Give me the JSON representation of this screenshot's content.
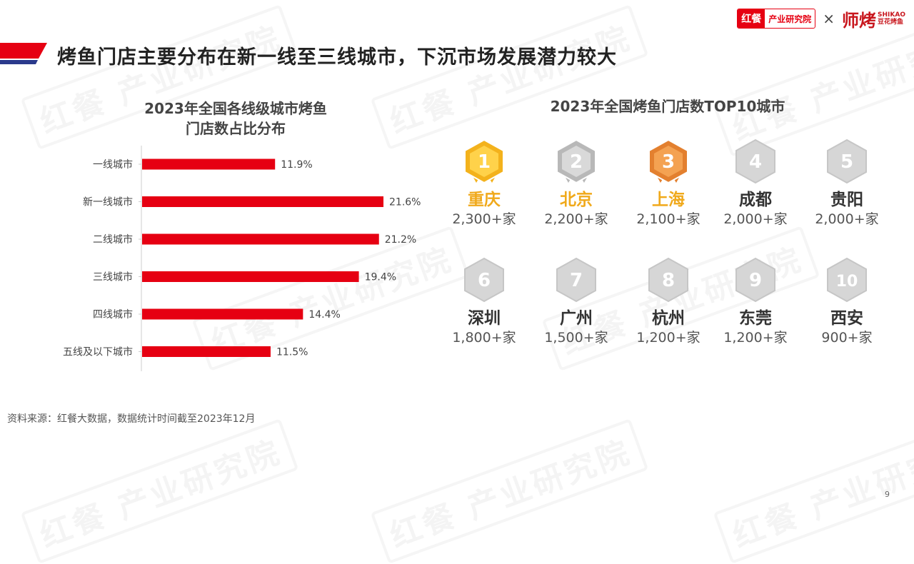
{
  "header": {
    "logo_hc_mark": "红餐",
    "logo_hc_text": "产业研究院",
    "logo_x": "×",
    "logo_sk_mark": "师烤",
    "logo_sk_en": "SHIKAO",
    "logo_sk_cn": "豆花烤鱼"
  },
  "watermark_text": "红餐 产业研究院",
  "page_title": "烤鱼门店主要分布在新一线至三线城市，下沉市场发展潜力较大",
  "chart_data": {
    "type": "bar",
    "orientation": "horizontal",
    "title_line1": "2023年全国各线级城市烤鱼",
    "title_line2": "门店数占比分布",
    "categories": [
      "一线城市",
      "新一线城市",
      "二线城市",
      "三线城市",
      "四线城市",
      "五线及以下城市"
    ],
    "values": [
      11.9,
      21.6,
      21.2,
      19.4,
      14.4,
      11.5
    ],
    "value_labels": [
      "11.9%",
      "21.6%",
      "21.2%",
      "19.4%",
      "14.4%",
      "11.5%"
    ],
    "unit": "%",
    "xlim": [
      0,
      21.6
    ],
    "grid": false,
    "bar_color": "#e60012"
  },
  "top10": {
    "title": "2023年全国烤鱼门店数TOP10城市",
    "cities": [
      {
        "rank": "1",
        "name": "重庆",
        "count": "2,300+家",
        "tier": "gold"
      },
      {
        "rank": "2",
        "name": "北京",
        "count": "2,200+家",
        "tier": "silver"
      },
      {
        "rank": "3",
        "name": "上海",
        "count": "2,100+家",
        "tier": "bronze"
      },
      {
        "rank": "4",
        "name": "成都",
        "count": "2,000+家",
        "tier": "plain"
      },
      {
        "rank": "5",
        "name": "贵阳",
        "count": "2,000+家",
        "tier": "plain"
      },
      {
        "rank": "6",
        "name": "深圳",
        "count": "1,800+家",
        "tier": "plain"
      },
      {
        "rank": "7",
        "name": "广州",
        "count": "1,500+家",
        "tier": "plain"
      },
      {
        "rank": "8",
        "name": "杭州",
        "count": "1,200+家",
        "tier": "plain"
      },
      {
        "rank": "9",
        "name": "东莞",
        "count": "1,200+家",
        "tier": "plain"
      },
      {
        "rank": "10",
        "name": "西安",
        "count": "900+家",
        "tier": "plain"
      }
    ]
  },
  "colors": {
    "accent_red": "#e60012",
    "flag_blue": "#2b3a8c",
    "gold": "#f0a91b",
    "silver": "#b5b5b5",
    "bronze": "#e07a2e",
    "plain_badge": "#d9d9d9"
  },
  "source": "资料来源：红餐大数据，数据统计时间截至2023年12月",
  "page_number": "9"
}
